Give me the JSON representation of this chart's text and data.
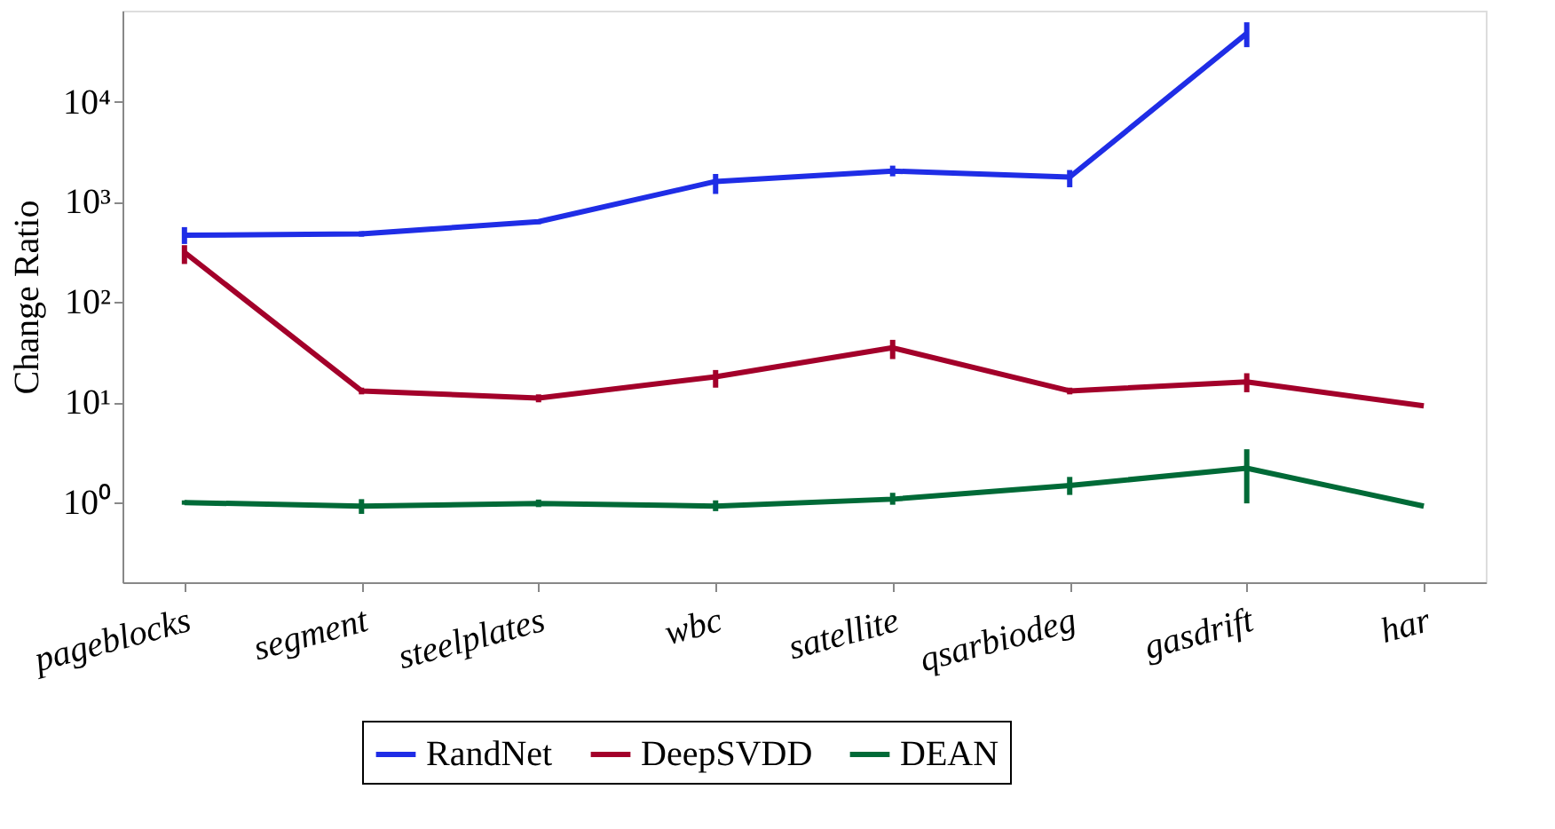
{
  "chart_data": {
    "type": "line",
    "ylabel": "Change Ratio",
    "categories": [
      "pageblocks",
      "segment",
      "steelplates",
      "wbc",
      "satellite",
      "qsarbiodeg",
      "gasdrift",
      "har"
    ],
    "series": [
      {
        "name": "RandNet",
        "color": "#1f2de6",
        "values": [
          465,
          480,
          635,
          1600,
          2030,
          1770,
          48000,
          null
        ],
        "errors": [
          [
            380,
            560
          ],
          [
            450,
            510
          ],
          [
            600,
            670
          ],
          [
            1200,
            1900
          ],
          [
            1800,
            2300
          ],
          [
            1400,
            2080
          ],
          [
            35000,
            62000
          ],
          null
        ]
      },
      {
        "name": "DeepSVDD",
        "color": "#a3002a",
        "values": [
          314,
          13,
          11,
          18,
          35,
          13,
          16,
          9.2
        ],
        "errors": [
          [
            240,
            370
          ],
          [
            12,
            14
          ],
          [
            10,
            12
          ],
          [
            14,
            21
          ],
          [
            27,
            42
          ],
          [
            12,
            14
          ],
          [
            12.6,
            19.5
          ],
          null
        ]
      },
      {
        "name": "DEAN",
        "color": "#006a37",
        "values": [
          1.0,
          0.92,
          0.98,
          0.92,
          1.08,
          1.48,
          2.2,
          0.92
        ],
        "errors": [
          [
            0.95,
            1.05
          ],
          [
            0.77,
            1.08
          ],
          [
            0.9,
            1.07
          ],
          [
            0.82,
            1.05
          ],
          [
            0.95,
            1.25
          ],
          [
            1.19,
            1.8
          ],
          [
            0.98,
            3.4
          ],
          null
        ]
      }
    ],
    "log": true,
    "ylim": [
      0.16,
      81000
    ],
    "yticks": [
      {
        "value": 1,
        "label": "10⁰"
      },
      {
        "value": 10,
        "label": "10¹"
      },
      {
        "value": 100,
        "label": "10²"
      },
      {
        "value": 1000,
        "label": "10³"
      },
      {
        "value": 10000,
        "label": "10⁴"
      }
    ],
    "grid": false,
    "legend": "bottom",
    "marker": "none",
    "line_style": "solid"
  }
}
